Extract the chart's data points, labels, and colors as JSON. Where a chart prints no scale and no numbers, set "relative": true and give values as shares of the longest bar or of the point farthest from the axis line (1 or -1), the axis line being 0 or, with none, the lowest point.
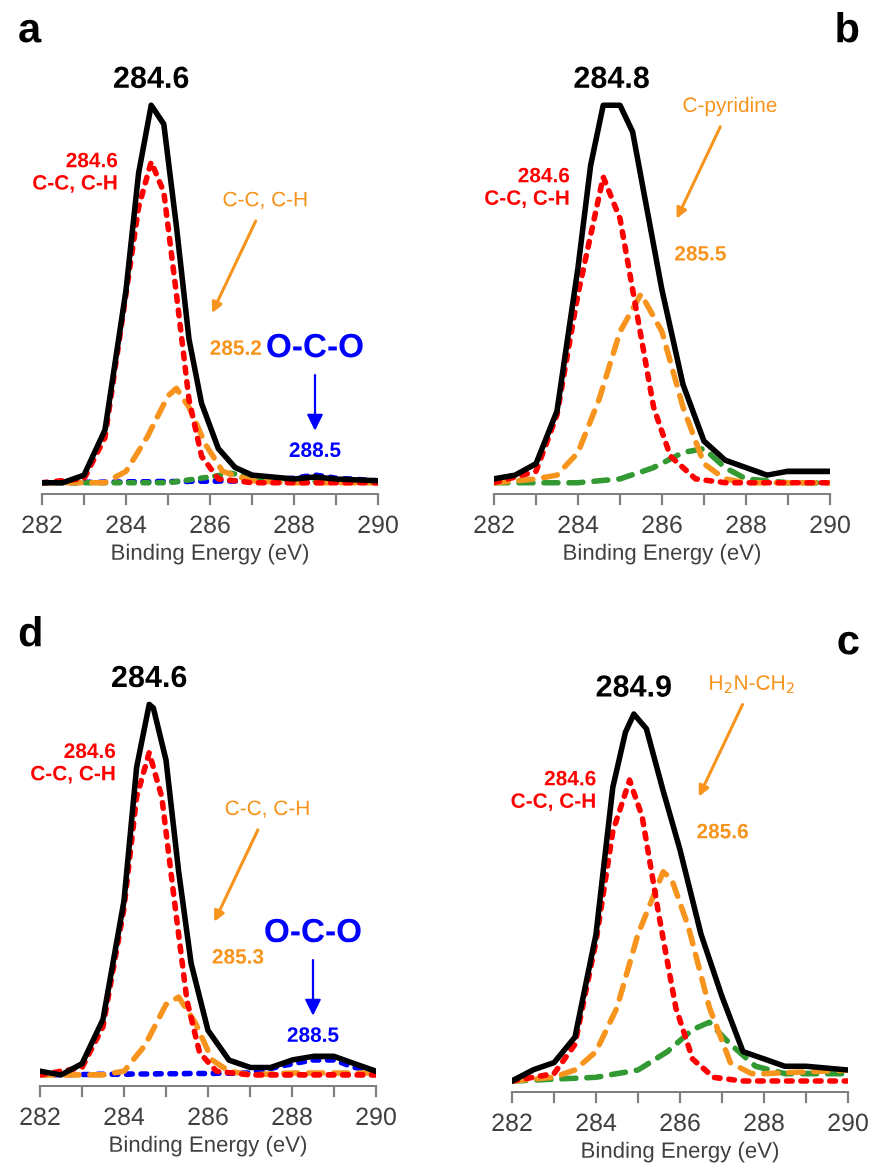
{
  "chart_data": [
    {
      "type": "line",
      "title": "a",
      "relative": true,
      "xlabel": "Binding Energy (eV)",
      "xlim": [
        282,
        290
      ],
      "xticks": [
        282,
        {
          "value": 283,
          "label": null
        },
        284,
        {
          "value": 285,
          "label": null
        },
        286,
        {
          "value": 287,
          "label": null
        },
        288,
        {
          "value": 289,
          "label": null
        },
        290
      ],
      "tick_labels": "x",
      "grid": false,
      "legend": false,
      "series": [
        {
          "color": "#000000",
          "line_style": "solid",
          "x": [
            282,
            282.5,
            283,
            283.5,
            284,
            284.3,
            284.6,
            284.9,
            285.2,
            285.5,
            285.8,
            286.2,
            286.6,
            287,
            288,
            288.5,
            289,
            290
          ],
          "values": [
            0,
            0,
            0.02,
            0.14,
            0.51,
            0.82,
            1.0,
            0.95,
            0.68,
            0.38,
            0.21,
            0.09,
            0.04,
            0.02,
            0.01,
            0.015,
            0.01,
            0.005
          ]
        },
        {
          "color": "#ff0000",
          "line_style": "dotted",
          "x": [
            282,
            283,
            283.5,
            284,
            284.3,
            284.6,
            284.9,
            285.2,
            285.5,
            285.8,
            286.2,
            287,
            290
          ],
          "values": [
            0,
            0.01,
            0.12,
            0.5,
            0.73,
            0.85,
            0.77,
            0.5,
            0.22,
            0.07,
            0.01,
            0,
            0
          ]
        },
        {
          "color": "#f7941d",
          "line_style": "dashed",
          "x": [
            282,
            283.5,
            284,
            284.5,
            285,
            285.2,
            285.5,
            285.9,
            286.3,
            287,
            288,
            290
          ],
          "values": [
            0,
            0,
            0.03,
            0.12,
            0.23,
            0.25,
            0.2,
            0.1,
            0.03,
            0.005,
            0,
            0
          ]
        },
        {
          "color": "#339933",
          "line_style": "dotted",
          "x": [
            282,
            285,
            286,
            286.5,
            287,
            288,
            290
          ],
          "values": [
            0,
            0,
            0.015,
            0.025,
            0.015,
            0.005,
            0
          ]
        },
        {
          "color": "#0000ff",
          "line_style": "dotted",
          "x": [
            282,
            287,
            288,
            288.5,
            289,
            290
          ],
          "values": [
            0,
            0.005,
            0.012,
            0.02,
            0.012,
            0.005
          ]
        }
      ],
      "annotations": [
        {
          "text": "284.6",
          "x": 284.6,
          "y": 1.0
        },
        {
          "text": "284.6\nC-C, C-H",
          "x": 284.6,
          "y": 0.85
        },
        {
          "text": "285.2",
          "x": 285.2,
          "y": 0.25
        },
        "C-C, C-H",
        {
          "text": "288.5",
          "x": 288.5,
          "y": 0.02
        },
        "O-C-O"
      ]
    },
    {
      "type": "line",
      "title": "b",
      "relative": true,
      "xlabel": "Binding Energy (eV)",
      "xlim": [
        282,
        290
      ],
      "xticks": [
        282,
        {
          "value": 283,
          "label": null
        },
        284,
        {
          "value": 285,
          "label": null
        },
        286,
        {
          "value": 287,
          "label": null
        },
        288,
        {
          "value": 289,
          "label": null
        },
        290
      ],
      "tick_labels": "x",
      "grid": false,
      "legend": false,
      "series": [
        {
          "color": "#000000",
          "line_style": "solid",
          "x": [
            282,
            282.5,
            283,
            283.5,
            284,
            284.3,
            284.6,
            284.8,
            285,
            285.3,
            285.6,
            286,
            286.5,
            287,
            287.5,
            288,
            288.5,
            289,
            290
          ],
          "values": [
            0.01,
            0.02,
            0.05,
            0.19,
            0.57,
            0.84,
            1.0,
            1.0,
            1.0,
            0.93,
            0.75,
            0.51,
            0.26,
            0.11,
            0.06,
            0.04,
            0.02,
            0.03,
            0.03
          ]
        },
        {
          "color": "#ff0000",
          "line_style": "dotted",
          "x": [
            282,
            283,
            283.5,
            284,
            284.6,
            285,
            285.4,
            285.8,
            286.2,
            286.8,
            287.5,
            290
          ],
          "values": [
            0,
            0.03,
            0.18,
            0.5,
            0.81,
            0.7,
            0.45,
            0.2,
            0.07,
            0.01,
            0,
            0
          ]
        },
        {
          "color": "#f7941d",
          "line_style": "dashed",
          "x": [
            282,
            283,
            283.5,
            284,
            284.5,
            285,
            285.5,
            286,
            286.5,
            287,
            287.5,
            288,
            290
          ],
          "values": [
            0,
            0.01,
            0.02,
            0.08,
            0.22,
            0.4,
            0.5,
            0.4,
            0.2,
            0.05,
            0.01,
            0,
            0
          ]
        },
        {
          "color": "#339933",
          "line_style": "dashed",
          "x": [
            282,
            284,
            285,
            285.8,
            286.5,
            287,
            287.5,
            288,
            289,
            290
          ],
          "values": [
            0,
            0,
            0.01,
            0.04,
            0.08,
            0.09,
            0.04,
            0.01,
            0,
            0
          ]
        }
      ],
      "annotations": [
        {
          "text": "284.8",
          "x": 284.8,
          "y": 1.0
        },
        {
          "text": "284.6\nC-C, C-H",
          "x": 284.6,
          "y": 0.81
        },
        {
          "text": "285.5",
          "x": 285.5,
          "y": 0.5
        },
        "C-pyridine"
      ]
    },
    {
      "type": "line",
      "title": "d",
      "relative": true,
      "xlabel": "Binding Energy (eV)",
      "xlim": [
        282,
        290
      ],
      "xticks": [
        282,
        {
          "value": 283,
          "label": null
        },
        284,
        {
          "value": 285,
          "label": null
        },
        286,
        {
          "value": 287,
          "label": null
        },
        288,
        {
          "value": 289,
          "label": null
        },
        290
      ],
      "tick_labels": "x",
      "grid": false,
      "legend": false,
      "series": [
        {
          "color": "#000000",
          "line_style": "solid",
          "x": [
            282,
            282.5,
            283,
            283.5,
            284,
            284.3,
            284.6,
            284.7,
            285,
            285.3,
            285.6,
            286,
            286.5,
            287,
            287.5,
            288,
            288.5,
            289,
            289.5,
            290
          ],
          "values": [
            0.01,
            0.0,
            0.03,
            0.15,
            0.47,
            0.83,
            1.0,
            0.99,
            0.85,
            0.55,
            0.3,
            0.12,
            0.04,
            0.02,
            0.02,
            0.04,
            0.05,
            0.05,
            0.03,
            0.01
          ]
        },
        {
          "color": "#ff0000",
          "line_style": "dotted",
          "x": [
            282,
            283,
            283.5,
            284,
            284.3,
            284.6,
            284.9,
            285.2,
            285.5,
            285.8,
            286.2,
            287,
            290
          ],
          "values": [
            0,
            0.02,
            0.13,
            0.45,
            0.75,
            0.87,
            0.75,
            0.47,
            0.2,
            0.06,
            0.01,
            0,
            0
          ]
        },
        {
          "color": "#f7941d",
          "line_style": "dashed",
          "x": [
            282,
            283.5,
            284,
            284.5,
            285,
            285.3,
            285.7,
            286.1,
            286.5,
            287,
            288,
            290
          ],
          "values": [
            0,
            0,
            0.01,
            0.08,
            0.19,
            0.21,
            0.14,
            0.04,
            0.01,
            0,
            0.005,
            0.005
          ]
        },
        {
          "color": "#0000ff",
          "line_style": "dotted",
          "x": [
            282,
            287,
            288,
            288.5,
            289,
            289.5,
            290
          ],
          "values": [
            0,
            0.005,
            0.03,
            0.04,
            0.04,
            0.02,
            0.01
          ]
        }
      ],
      "annotations": [
        {
          "text": "284.6",
          "x": 284.6,
          "y": 1.0
        },
        {
          "text": "284.6\nC-C, C-H",
          "x": 284.6,
          "y": 0.87
        },
        {
          "text": "285.3",
          "x": 285.3,
          "y": 0.21
        },
        "C-C, C-H",
        {
          "text": "288.5",
          "x": 288.5,
          "y": 0.04
        },
        "O-C-O"
      ]
    },
    {
      "type": "line",
      "title": "c",
      "relative": true,
      "xlabel": "Binding Energy (eV)",
      "xlim": [
        282,
        290
      ],
      "xticks": [
        282,
        {
          "value": 283,
          "label": null
        },
        284,
        {
          "value": 285,
          "label": null
        },
        286,
        {
          "value": 287,
          "label": null
        },
        288,
        {
          "value": 289,
          "label": null
        },
        290
      ],
      "tick_labels": "x",
      "grid": false,
      "legend": false,
      "series": [
        {
          "color": "#000000",
          "line_style": "solid",
          "x": [
            282,
            282.5,
            283,
            283.5,
            284,
            284.4,
            284.7,
            284.9,
            285.2,
            285.6,
            286,
            286.5,
            287,
            287.5,
            288,
            288.5,
            289,
            290
          ],
          "values": [
            0,
            0.03,
            0.05,
            0.12,
            0.4,
            0.8,
            0.95,
            1.0,
            0.96,
            0.79,
            0.63,
            0.4,
            0.23,
            0.08,
            0.06,
            0.04,
            0.04,
            0.03
          ]
        },
        {
          "color": "#ff0000",
          "line_style": "dotted",
          "x": [
            282,
            283,
            283.5,
            284,
            284.4,
            284.8,
            285.1,
            285.5,
            285.9,
            286.3,
            286.8,
            287.5,
            290
          ],
          "values": [
            0,
            0.02,
            0.1,
            0.38,
            0.68,
            0.82,
            0.72,
            0.45,
            0.2,
            0.06,
            0.01,
            0,
            0
          ]
        },
        {
          "color": "#f7941d",
          "line_style": "dashed",
          "x": [
            282,
            283,
            283.5,
            284,
            284.5,
            285,
            285.6,
            285.8,
            286.2,
            286.7,
            287.2,
            287.7,
            288,
            290
          ],
          "values": [
            0,
            0.01,
            0.03,
            0.08,
            0.2,
            0.4,
            0.57,
            0.55,
            0.42,
            0.2,
            0.05,
            0.02,
            0.02,
            0.03
          ]
        },
        {
          "color": "#339933",
          "line_style": "dashed",
          "x": [
            282,
            284,
            285,
            285.7,
            286.3,
            286.7,
            287.2,
            287.8,
            288.5,
            290
          ],
          "values": [
            0,
            0.01,
            0.03,
            0.08,
            0.14,
            0.16,
            0.1,
            0.04,
            0.02,
            0.02
          ]
        }
      ],
      "annotations": [
        {
          "text": "284.9",
          "x": 284.9,
          "y": 1.0
        },
        {
          "text": "284.6\nC-C, C-H",
          "x": 284.8,
          "y": 0.82
        },
        {
          "text": "285.6",
          "x": 285.6,
          "y": 0.57
        },
        "H$_{2}$N-CH$_{2}$"
      ]
    }
  ]
}
